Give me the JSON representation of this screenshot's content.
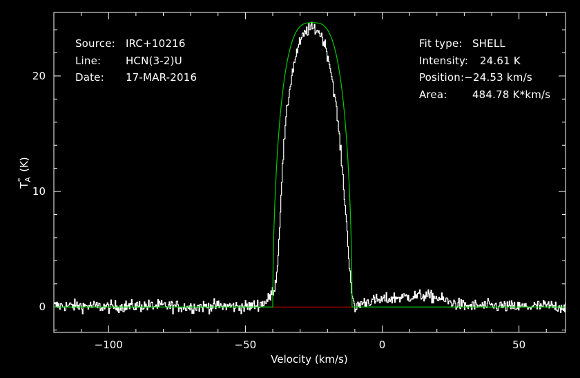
{
  "header": {
    "source_label": "Source:",
    "source_value": "IRC+10216",
    "line_label": "Line:",
    "line_value": "HCN(3-2)U",
    "date_label": "Date:",
    "date_value": "17-MAR-2016"
  },
  "fit": {
    "type_label": "Fit type:",
    "type_value": "SHELL",
    "intensity_label": "Intensity:",
    "intensity_value": "24.61 K",
    "position_label": "Position:",
    "position_value": "-24.53 km/s",
    "area_label": "Area:",
    "area_value": "484.78 K*km/s"
  },
  "chart_data": {
    "type": "line",
    "xlabel": "Velocity (km/s)",
    "ylabel": "T*A (K)",
    "xlim": [
      -120,
      67
    ],
    "ylim": [
      -2.2,
      25.5
    ],
    "xticks": [
      -100,
      -50,
      0,
      50
    ],
    "yticks": [
      0,
      10,
      20
    ],
    "grid": false,
    "colors": {
      "spectrum": "#ffffff",
      "fit": "#00cc00",
      "baseline": "#e00000",
      "axes": "#ffffff"
    },
    "series": [
      {
        "role": "observed spectrum (histogram)",
        "x": [
          -120,
          -110,
          -100,
          -90,
          -80,
          -70,
          -60,
          -50,
          -45,
          -42,
          -40,
          -39,
          -38,
          -37,
          -36,
          -35,
          -34,
          -33,
          -32,
          -31,
          -30,
          -29,
          -28,
          -27,
          -26,
          -25,
          -24,
          -23,
          -22,
          -21,
          -20,
          -19,
          -18,
          -17,
          -16,
          -15,
          -14,
          -13,
          -12,
          -11,
          -10,
          -9,
          -8,
          -5,
          0,
          5,
          10,
          15,
          20,
          25,
          30,
          40,
          50,
          60,
          67
        ],
        "y": [
          0.1,
          0.1,
          0,
          0.1,
          0.1,
          0,
          0.1,
          0,
          0.2,
          0.5,
          1.3,
          2.0,
          4.3,
          9.6,
          13.7,
          16.5,
          18.5,
          20.1,
          21.3,
          22.2,
          22.9,
          23.4,
          23.8,
          24.0,
          24.1,
          24.1,
          24.0,
          23.8,
          23.4,
          22.8,
          21.9,
          20.8,
          19.4,
          17.7,
          15.6,
          13.1,
          10.3,
          7.2,
          3.8,
          1.0,
          -0.4,
          0.2,
          0.3,
          0.5,
          0.6,
          0.8,
          0.9,
          1.0,
          0.8,
          0.4,
          0.1,
          0.1,
          0,
          0.1,
          0
        ]
      },
      {
        "role": "SHELL fit",
        "x_range": [
          -40.0,
          -11.0
        ],
        "peak": 24.61,
        "center": -24.53
      },
      {
        "role": "baseline window",
        "x_range": [
          -40.5,
          -10.5
        ],
        "y": 0
      }
    ]
  }
}
